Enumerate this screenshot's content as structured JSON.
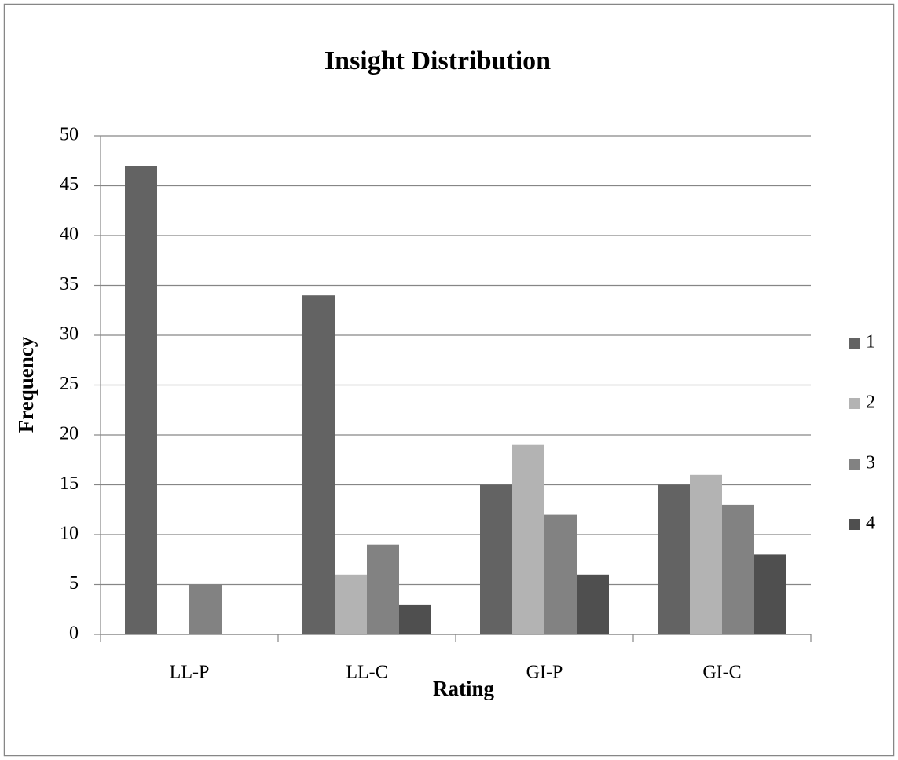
{
  "chart_data": {
    "type": "bar",
    "title": "Insight Distribution",
    "x_label": "Rating",
    "y_label": "Frequency",
    "categories": [
      "LL-P",
      "LL-C",
      "GI-P",
      "GI-C"
    ],
    "series": [
      {
        "name": "1",
        "color": "#636363",
        "values": [
          47,
          34,
          15,
          15
        ]
      },
      {
        "name": "2",
        "color": "#b3b3b3",
        "values": [
          0,
          6,
          19,
          16
        ]
      },
      {
        "name": "3",
        "color": "#828282",
        "values": [
          5,
          9,
          12,
          13
        ]
      },
      {
        "name": "4",
        "color": "#4f4f4f",
        "values": [
          0,
          3,
          6,
          8
        ]
      }
    ],
    "ylim": [
      0,
      50
    ],
    "yticks": [
      0,
      5,
      10,
      15,
      20,
      25,
      30,
      35,
      40,
      45,
      50
    ],
    "grid": true,
    "legend": "right"
  }
}
